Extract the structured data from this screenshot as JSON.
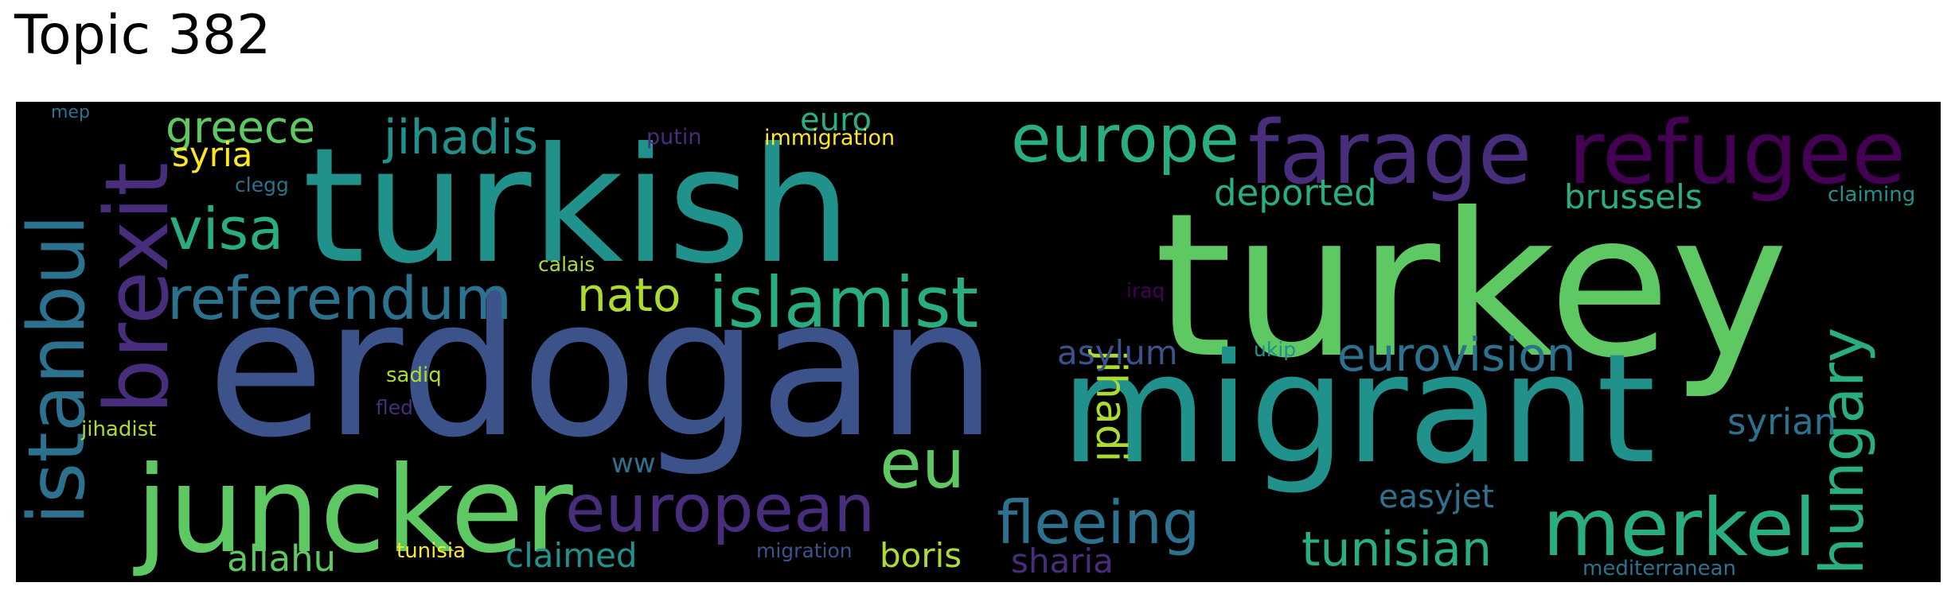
{
  "title": "Topic 382",
  "background": "#000000",
  "words": [
    {
      "text": "turkey",
      "color": "#5ec962"
    },
    {
      "text": "erdogan",
      "color": "#3b528b"
    },
    {
      "text": "turkish",
      "color": "#21918c"
    },
    {
      "text": "migrant",
      "color": "#21918c"
    },
    {
      "text": "juncker",
      "color": "#5ec962"
    },
    {
      "text": "refugee",
      "color": "#440154"
    },
    {
      "text": "farage",
      "color": "#472d7b"
    },
    {
      "text": "europe",
      "color": "#28ae80"
    },
    {
      "text": "islamist",
      "color": "#28ae80"
    },
    {
      "text": "european",
      "color": "#472d7b"
    },
    {
      "text": "brexit",
      "color": "#472d7b"
    },
    {
      "text": "istanbul",
      "color": "#2c728e"
    },
    {
      "text": "referendum",
      "color": "#2c728e"
    },
    {
      "text": "merkel",
      "color": "#28ae80"
    },
    {
      "text": "fleeing",
      "color": "#2c728e"
    },
    {
      "text": "hungary",
      "color": "#28ae80"
    },
    {
      "text": "visa",
      "color": "#28ae80"
    },
    {
      "text": "eu",
      "color": "#5ec962"
    },
    {
      "text": "jihadis",
      "color": "#21918c"
    },
    {
      "text": "tunisian",
      "color": "#28ae80"
    },
    {
      "text": "eurovision",
      "color": "#2c728e"
    },
    {
      "text": "jihadi",
      "color": "#addc30"
    },
    {
      "text": "nato",
      "color": "#addc30"
    },
    {
      "text": "greece",
      "color": "#5ec962"
    },
    {
      "text": "deported",
      "color": "#28ae80"
    },
    {
      "text": "brussels",
      "color": "#28ae80"
    },
    {
      "text": "syrian",
      "color": "#2c728e"
    },
    {
      "text": "allahu",
      "color": "#5ec962"
    },
    {
      "text": "claimed",
      "color": "#21918c"
    },
    {
      "text": "boris",
      "color": "#addc30"
    },
    {
      "text": "sharia",
      "color": "#472d7b"
    },
    {
      "text": "asylum",
      "color": "#3b528b"
    },
    {
      "text": "easyjet",
      "color": "#2c728e"
    },
    {
      "text": "syria",
      "color": "#fde725"
    },
    {
      "text": "euro",
      "color": "#28ae80"
    },
    {
      "text": "ww",
      "color": "#2c728e"
    },
    {
      "text": "immigration",
      "color": "#fde725"
    },
    {
      "text": "putin",
      "color": "#472d7b"
    },
    {
      "text": "mediterranean",
      "color": "#2c728e"
    },
    {
      "text": "claiming",
      "color": "#21918c"
    },
    {
      "text": "clegg",
      "color": "#2c728e"
    },
    {
      "text": "calais",
      "color": "#addc30"
    },
    {
      "text": "iraq",
      "color": "#440154"
    },
    {
      "text": "ukip",
      "color": "#21918c"
    },
    {
      "text": "sadiq",
      "color": "#addc30"
    },
    {
      "text": "fled",
      "color": "#472d7b"
    },
    {
      "text": "jihadist",
      "color": "#addc30"
    },
    {
      "text": "tunisia",
      "color": "#fde725"
    },
    {
      "text": "migration",
      "color": "#3b528b"
    },
    {
      "text": "mep",
      "color": "#2c728e"
    }
  ]
}
